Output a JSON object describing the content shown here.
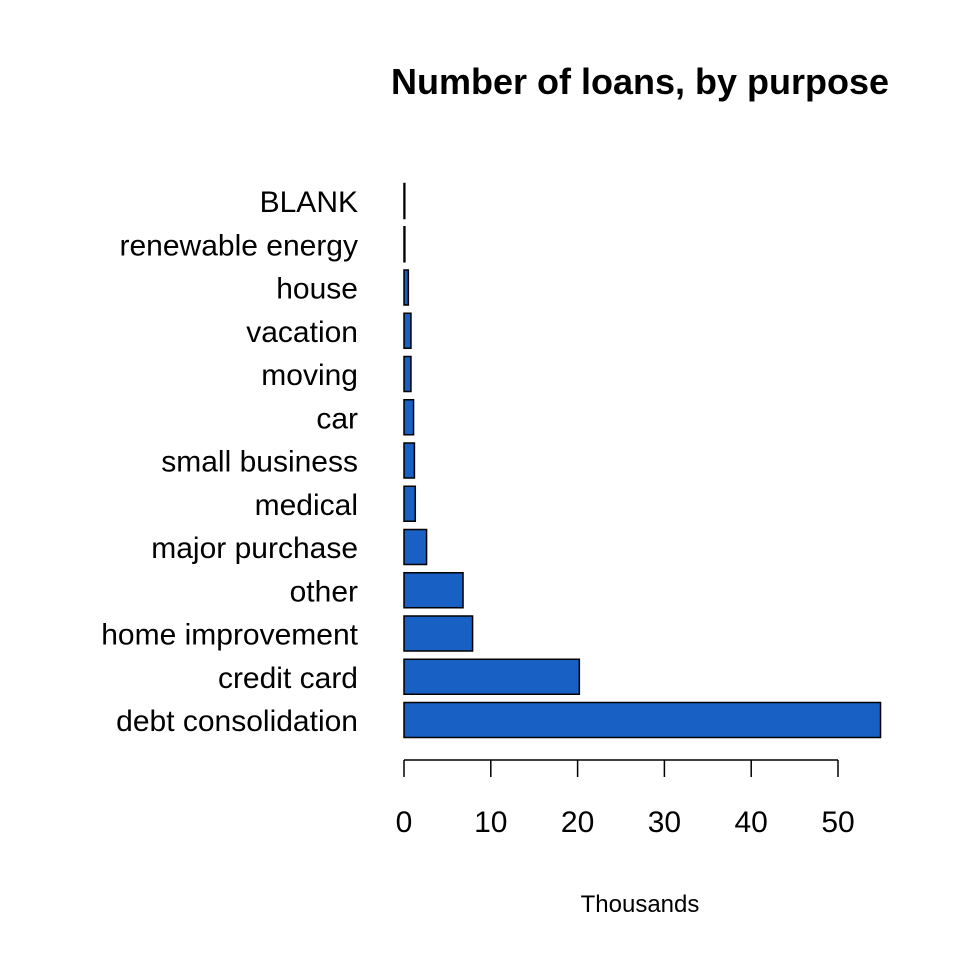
{
  "chart_data": {
    "type": "bar",
    "orientation": "horizontal",
    "title": "Number of loans, by purpose",
    "xlabel": "Thousands",
    "ylabel": "",
    "categories": [
      "debt consolidation",
      "credit card",
      "home improvement",
      "other",
      "major purchase",
      "medical",
      "small business",
      "car",
      "moving",
      "vacation",
      "house",
      "renewable energy",
      "BLANK"
    ],
    "values": [
      54.9,
      20.2,
      7.9,
      6.8,
      2.6,
      1.3,
      1.2,
      1.1,
      0.8,
      0.8,
      0.5,
      0.1,
      0.02
    ],
    "xlim": [
      0,
      55
    ],
    "xticks": [
      0,
      10,
      20,
      30,
      40,
      50
    ],
    "bar_color": "#1860c3",
    "bar_edge_color": "#000000",
    "grid": false,
    "legend": "none"
  }
}
